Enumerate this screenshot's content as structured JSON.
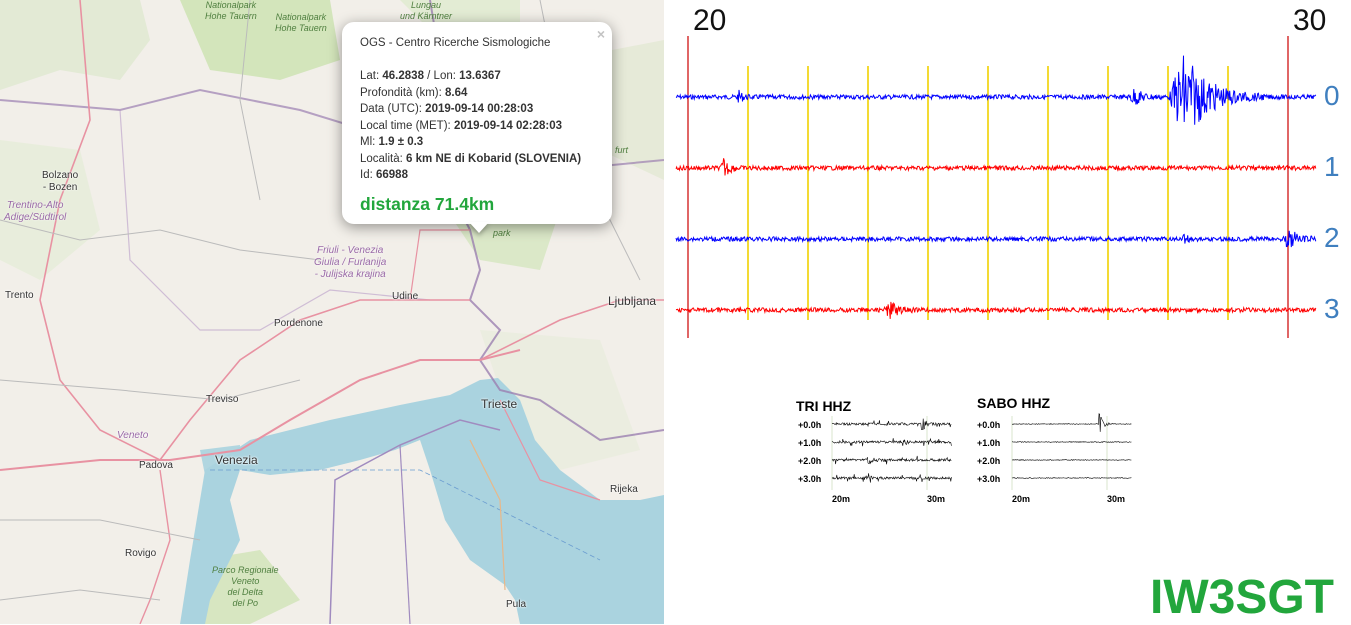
{
  "map": {
    "places": [
      {
        "name": "Bolzano\n- Bozen"
      },
      {
        "name": "Trento"
      },
      {
        "name": "Pordenone"
      },
      {
        "name": "Udine"
      },
      {
        "name": "Treviso"
      },
      {
        "name": "Venezia"
      },
      {
        "name": "Padova"
      },
      {
        "name": "Rovigo"
      },
      {
        "name": "Trieste"
      },
      {
        "name": "Ljubljana"
      },
      {
        "name": "Rijeka"
      },
      {
        "name": "Pula"
      },
      {
        "name": "Veneto"
      }
    ],
    "regions": {
      "trentino": "Trentino-Alto\nAdige/Südtirol",
      "friuli": "Friuli - Venezia\nGiulia / Furlanija\n- Julijska krajina"
    },
    "parks": {
      "hohe_tauern_1": "Nationalpark\nHohe Tauern",
      "hohe_tauern_2": "Nationalpark\nHohe Tauern",
      "lungau": "Lungau\nund Kärntner",
      "po_delta": "Parco Regionale\nVeneto\ndel Delta\ndel Po",
      "park": "park",
      "furt": "furt"
    }
  },
  "popup": {
    "close": "×",
    "title": "OGS - Centro Ricerche Sismologiche",
    "lat_label": "Lat: ",
    "lat": "46.2838",
    "lon_label": " / Lon: ",
    "lon": "13.6367",
    "depth_label": "Profondità (km): ",
    "depth": "8.64",
    "utc_label": "Data (UTC): ",
    "utc": "2019-09-14 00:28:03",
    "met_label": "Local time (MET): ",
    "met": "2019-09-14 02:28:03",
    "ml_label": "Ml: ",
    "ml": "1.9 ± 0.3",
    "loc_label": "Località: ",
    "loc": "6 km NE di Kobarid (SLOVENIA)",
    "id_label": "Id: ",
    "id": "66988",
    "distance": "distanza 71.4km"
  },
  "seismogram": {
    "start_label": "20",
    "end_label": "30",
    "channels": [
      {
        "label": "0",
        "color": "#0000ff"
      },
      {
        "label": "1",
        "color": "#ff0000"
      },
      {
        "label": "2",
        "color": "#0000ff"
      },
      {
        "label": "3",
        "color": "#ff0000"
      }
    ],
    "grid_color": "#f0d000",
    "boundary_color": "#cc0000"
  },
  "mini_plots": [
    {
      "title": "TRI HHZ",
      "rows": [
        "+0.0h",
        "+1.0h",
        "+2.0h",
        "+3.0h"
      ],
      "x_labels": [
        "20m",
        "30m"
      ]
    },
    {
      "title": "SABO HHZ",
      "rows": [
        "+0.0h",
        "+1.0h",
        "+2.0h",
        "+3.0h"
      ],
      "x_labels": [
        "20m",
        "30m"
      ]
    }
  ],
  "callsign": "IW3SGT",
  "colors": {
    "accent": "#22a63c",
    "channel_label": "#3f7fbf",
    "sea": "#aad3df",
    "land": "#f2efe9"
  }
}
